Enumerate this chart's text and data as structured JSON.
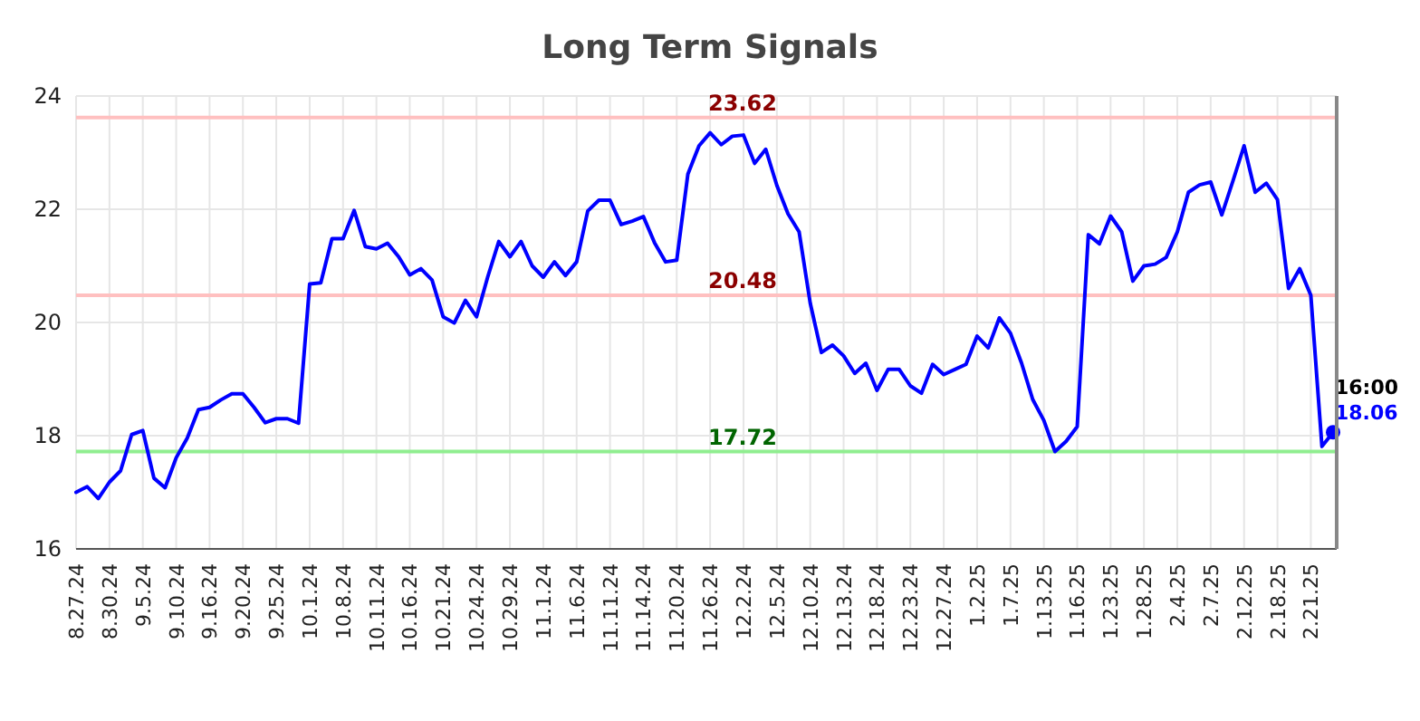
{
  "chart_data": {
    "type": "line",
    "title": "Long Term Signals",
    "categories": [
      "8.27.24",
      null,
      null,
      "8.30.24",
      null,
      null,
      "9.5.24",
      null,
      null,
      "9.10.24",
      null,
      null,
      "9.16.24",
      null,
      null,
      "9.20.24",
      null,
      null,
      "9.25.24",
      null,
      null,
      "10.1.24",
      null,
      null,
      "10.8.24",
      null,
      null,
      "10.11.24",
      null,
      null,
      "10.16.24",
      null,
      null,
      "10.21.24",
      null,
      null,
      "10.24.24",
      null,
      null,
      "10.29.24",
      null,
      null,
      "11.1.24",
      null,
      null,
      "11.6.24",
      null,
      null,
      "11.11.24",
      null,
      null,
      "11.14.24",
      null,
      null,
      "11.20.24",
      null,
      null,
      "11.26.24",
      null,
      null,
      "12.2.24",
      null,
      null,
      "12.5.24",
      null,
      null,
      "12.10.24",
      null,
      null,
      "12.13.24",
      null,
      null,
      "12.18.24",
      null,
      null,
      "12.23.24",
      null,
      null,
      "12.27.24",
      null,
      null,
      "1.2.25",
      null,
      null,
      "1.7.25",
      null,
      null,
      "1.13.25",
      null,
      null,
      "1.16.25",
      null,
      null,
      "1.23.25",
      null,
      null,
      "1.28.25",
      null,
      null,
      "2.4.25",
      null,
      null,
      "2.7.25",
      null,
      null,
      "2.12.25",
      null,
      null,
      "2.18.25",
      null,
      null,
      "2.21.25",
      null,
      null
    ],
    "series": [
      {
        "color": "#0000ff",
        "values": [
          17.0,
          17.1,
          16.89,
          17.18,
          17.38,
          18.02,
          18.09,
          17.25,
          17.08,
          17.61,
          17.96,
          18.46,
          18.5,
          18.63,
          18.74,
          18.74,
          18.5,
          18.23,
          18.3,
          18.3,
          18.22,
          20.68,
          20.7,
          21.48,
          21.48,
          21.98,
          21.34,
          21.3,
          21.4,
          21.16,
          20.84,
          20.95,
          20.75,
          20.1,
          19.99,
          20.39,
          20.1,
          20.8,
          21.43,
          21.16,
          21.43,
          21.0,
          20.8,
          21.07,
          20.83,
          21.07,
          21.97,
          22.16,
          22.16,
          21.73,
          21.79,
          21.87,
          21.41,
          21.07,
          21.1,
          22.62,
          23.12,
          23.35,
          23.14,
          23.29,
          23.31,
          22.81,
          23.06,
          22.42,
          21.92,
          21.6,
          20.34,
          19.47,
          19.6,
          19.41,
          19.1,
          19.28,
          18.8,
          19.17,
          19.17,
          18.88,
          18.75,
          19.26,
          19.08,
          19.17,
          19.26,
          19.76,
          19.55,
          20.08,
          19.81,
          19.28,
          18.64,
          18.27,
          17.72,
          17.9,
          18.16,
          21.55,
          21.39,
          21.88,
          21.6,
          20.73,
          21.0,
          21.03,
          21.15,
          21.6,
          22.3,
          22.43,
          22.48,
          21.9,
          22.5,
          23.12,
          22.3,
          22.46,
          22.17,
          20.6,
          20.95,
          20.48,
          17.81,
          18.06
        ],
        "value_labels": [
          null,
          null,
          null,
          null,
          null,
          null,
          null,
          null,
          null,
          null,
          null,
          null,
          null,
          null,
          null,
          null,
          null,
          null,
          null,
          null,
          null,
          null,
          null,
          null,
          null,
          null,
          null,
          null,
          null,
          null,
          null,
          null,
          null,
          null,
          null,
          null,
          null,
          null,
          null,
          null,
          null,
          null,
          null,
          null,
          null,
          null,
          null,
          null,
          null,
          null,
          null,
          null,
          null,
          null,
          null,
          null,
          null,
          null,
          null,
          null,
          null,
          null,
          null,
          null,
          null,
          null,
          null,
          null,
          null,
          null,
          null,
          null,
          null,
          null,
          null,
          null,
          null,
          null,
          null,
          null,
          null,
          null,
          null,
          null,
          null,
          null,
          null,
          null,
          null,
          null,
          null,
          null,
          null,
          null,
          null,
          null,
          null,
          null,
          null,
          null,
          null,
          null,
          null,
          null,
          null,
          null,
          null,
          null,
          null,
          null,
          null,
          null,
          null,
          "18.06"
        ]
      }
    ],
    "annotations": [
      "16:00"
    ],
    "ylim": [
      16,
      24
    ],
    "yticks": [
      16,
      18,
      20,
      22,
      24
    ],
    "grid": true,
    "marker": "none",
    "line_style": "solid",
    "ref_lines": [
      {
        "axis": "y",
        "value": 23.62,
        "label": "23.62",
        "color": "#ffc0c0"
      },
      {
        "axis": "y",
        "value": 20.48,
        "label": "20.48",
        "color": "#ffc0c0"
      },
      {
        "axis": "y",
        "value": 17.72,
        "label": "17.72",
        "color": "#90ee90"
      }
    ]
  }
}
